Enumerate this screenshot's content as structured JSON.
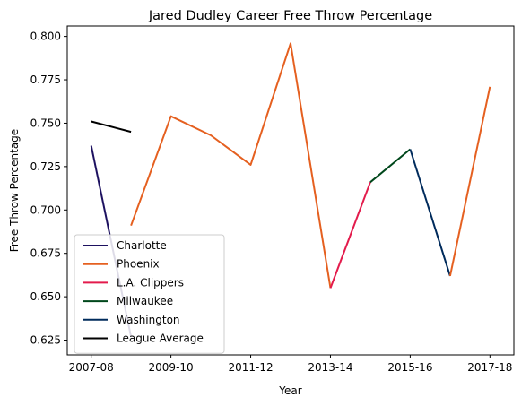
{
  "chart_data": {
    "type": "line",
    "title": "Jared Dudley Career Free Throw Percentage",
    "xlabel": "Year",
    "ylabel": "Free Throw Percentage",
    "x_ticks": [
      "2007-08",
      "2009-10",
      "2011-12",
      "2013-14",
      "2015-16",
      "2017-18"
    ],
    "y_ticks": [
      "0.625",
      "0.650",
      "0.675",
      "0.700",
      "0.725",
      "0.750",
      "0.775",
      "0.800"
    ],
    "xlim": [
      -0.6,
      10.6
    ],
    "ylim": [
      0.6165,
      0.806
    ],
    "grid": false,
    "legend_position": "lower-left",
    "series": [
      {
        "name": "Charlotte",
        "color": "#1d1160",
        "points": [
          [
            0,
            0.737
          ],
          [
            1,
            0.627
          ]
        ]
      },
      {
        "name": "Phoenix",
        "color": "#e56020",
        "points": [
          [
            1,
            0.691
          ],
          [
            2,
            0.754
          ],
          [
            3,
            0.743
          ],
          [
            4,
            0.726
          ],
          [
            5,
            0.796
          ],
          [
            6,
            0.655
          ]
        ]
      },
      {
        "name": "L.A. Clippers",
        "color": "#e31b4c",
        "points": [
          [
            6,
            0.655
          ],
          [
            7,
            0.716
          ]
        ]
      },
      {
        "name": "Milwaukee",
        "color": "#00471b",
        "points": [
          [
            7,
            0.716
          ],
          [
            8,
            0.735
          ]
        ]
      },
      {
        "name": "Washington",
        "color": "#002b5c",
        "points": [
          [
            8,
            0.735
          ],
          [
            9,
            0.662
          ]
        ]
      },
      {
        "name": "Phoenix",
        "color": "#e56020",
        "legend": false,
        "points": [
          [
            9,
            0.662
          ],
          [
            10,
            0.771
          ]
        ]
      },
      {
        "name": "League Average",
        "color": "#000000",
        "points": [
          [
            0,
            0.751
          ],
          [
            1,
            0.745
          ]
        ]
      }
    ]
  }
}
